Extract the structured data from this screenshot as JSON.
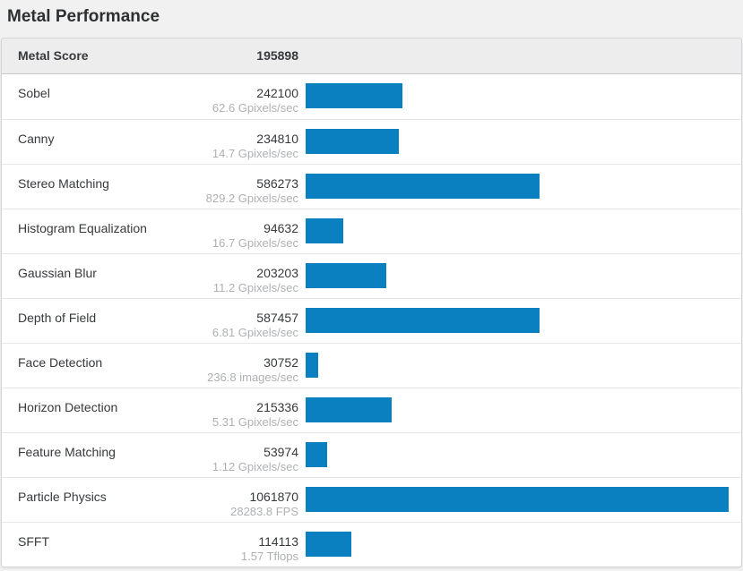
{
  "page": {
    "title": "Metal Performance"
  },
  "colors": {
    "bar": "#0a80c0",
    "header_bg": "#ededee",
    "text": "#37393c",
    "muted_text": "#aeb0b3"
  },
  "summary": {
    "label": "Metal Score",
    "value": "195898"
  },
  "rows": [
    {
      "name": "Sobel",
      "score": 242100,
      "rate": "62.6 Gpixels/sec"
    },
    {
      "name": "Canny",
      "score": 234810,
      "rate": "14.7 Gpixels/sec"
    },
    {
      "name": "Stereo Matching",
      "score": 586273,
      "rate": "829.2 Gpixels/sec"
    },
    {
      "name": "Histogram Equalization",
      "score": 94632,
      "rate": "16.7 Gpixels/sec"
    },
    {
      "name": "Gaussian Blur",
      "score": 203203,
      "rate": "11.2 Gpixels/sec"
    },
    {
      "name": "Depth of Field",
      "score": 587457,
      "rate": "6.81 Gpixels/sec"
    },
    {
      "name": "Face Detection",
      "score": 30752,
      "rate": "236.8 images/sec"
    },
    {
      "name": "Horizon Detection",
      "score": 215336,
      "rate": "5.31 Gpixels/sec"
    },
    {
      "name": "Feature Matching",
      "score": 53974,
      "rate": "1.12 Gpixels/sec"
    },
    {
      "name": "Particle Physics",
      "score": 1061870,
      "rate": "28283.8 FPS"
    },
    {
      "name": "SFFT",
      "score": 114113,
      "rate": "1.57 Tflops"
    }
  ],
  "chart_data": {
    "type": "bar",
    "orientation": "horizontal",
    "title": "Metal Performance",
    "summary_label": "Metal Score",
    "summary_value": 195898,
    "categories": [
      "Sobel",
      "Canny",
      "Stereo Matching",
      "Histogram Equalization",
      "Gaussian Blur",
      "Depth of Field",
      "Face Detection",
      "Horizon Detection",
      "Feature Matching",
      "Particle Physics",
      "SFFT"
    ],
    "values": [
      242100,
      234810,
      586273,
      94632,
      203203,
      587457,
      30752,
      215336,
      53974,
      1061870,
      114113
    ],
    "value_annotations": [
      "62.6 Gpixels/sec",
      "14.7 Gpixels/sec",
      "829.2 Gpixels/sec",
      "16.7 Gpixels/sec",
      "11.2 Gpixels/sec",
      "6.81 Gpixels/sec",
      "236.8 images/sec",
      "5.31 Gpixels/sec",
      "1.12 Gpixels/sec",
      "28283.8 FPS",
      "1.57 Tflops"
    ],
    "xlim": [
      0,
      1061870
    ],
    "grid": false,
    "legend": false,
    "bar_color": "#0a80c0"
  }
}
